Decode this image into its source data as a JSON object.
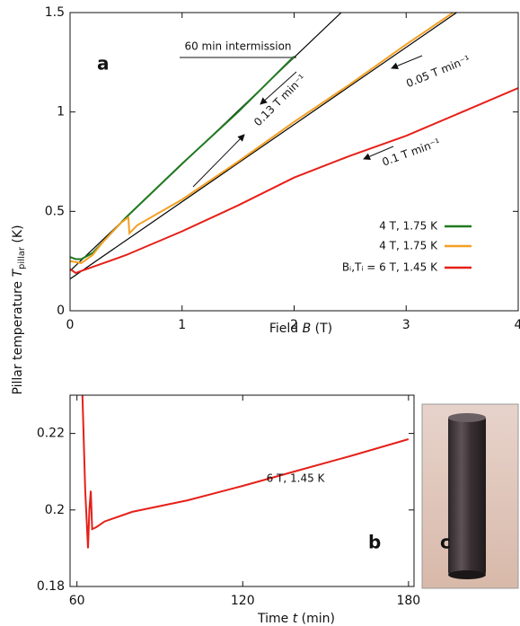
{
  "chart_data": [
    {
      "type": "line",
      "panel": "a",
      "ylabel": [
        "Pillar temperature ",
        "T",
        "pillar",
        " (K)"
      ],
      "xlabel": [
        "Field ",
        "B",
        " (T)"
      ],
      "xlim": [
        0,
        4
      ],
      "ylim": [
        0,
        1.5
      ],
      "xticks": [
        0,
        1,
        2,
        3,
        4
      ],
      "yticks": [
        0,
        0.5,
        1,
        1.5
      ],
      "annotations": [
        "60 min intermission",
        "0.13 T min⁻¹",
        "0.05 T min⁻¹",
        "0.1 T min⁻¹"
      ],
      "series": [
        {
          "name": "4 T, 1.75 K",
          "color": "#1f7a1f",
          "x": [
            0,
            0.05,
            0.1,
            0.2,
            0.3,
            0.5,
            1,
            1.5,
            2
          ],
          "values": [
            0.27,
            0.26,
            0.26,
            0.29,
            0.35,
            0.47,
            0.74,
            1.0,
            1.28
          ]
        },
        {
          "name": "4 T, 1.75 K",
          "color": "#f5a023",
          "x": [
            0,
            0.1,
            0.2,
            0.3,
            0.45,
            0.52,
            0.53,
            0.6,
            1,
            1.5,
            2,
            2.5,
            3,
            3.42
          ],
          "values": [
            0.25,
            0.24,
            0.28,
            0.35,
            0.44,
            0.47,
            0.39,
            0.43,
            0.56,
            0.75,
            0.95,
            1.14,
            1.34,
            1.5
          ]
        },
        {
          "name": "Bᵢ,Tᵢ = 6 T, 1.45 K",
          "color": "#e52019",
          "x": [
            0,
            0.05,
            0.1,
            0.5,
            1,
            1.5,
            2,
            2.5,
            3,
            3.5,
            4
          ],
          "values": [
            0.21,
            0.19,
            0.2,
            0.28,
            0.4,
            0.53,
            0.67,
            0.78,
            0.88,
            1.0,
            1.12
          ]
        }
      ],
      "reference_lines": [
        {
          "color": "#000000",
          "x": [
            0,
            2.42
          ],
          "values": [
            0.2,
            1.5
          ]
        },
        {
          "color": "#000000",
          "x": [
            0,
            3.45
          ],
          "values": [
            0.16,
            1.5
          ]
        }
      ]
    },
    {
      "type": "line",
      "panel": "b",
      "xlabel": [
        "Time ",
        "t",
        " (min)"
      ],
      "xlim": [
        57.5,
        182
      ],
      "ylim": [
        0.18,
        0.23
      ],
      "xticks": [
        60,
        120,
        180
      ],
      "yticks": [
        0.18,
        0.2,
        0.22
      ],
      "annotations": [
        "6 T, 1.45 K"
      ],
      "series": [
        {
          "color": "#e52019",
          "x": [
            62,
            63,
            64,
            64.5,
            65,
            65.5,
            67,
            70,
            80,
            100,
            120,
            140,
            160,
            180
          ],
          "values": [
            0.23,
            0.205,
            0.19,
            0.2,
            0.205,
            0.195,
            0.1955,
            0.197,
            0.1995,
            0.2025,
            0.2063,
            0.2103,
            0.2143,
            0.2185
          ]
        }
      ]
    }
  ],
  "photo": {
    "label": "c"
  }
}
